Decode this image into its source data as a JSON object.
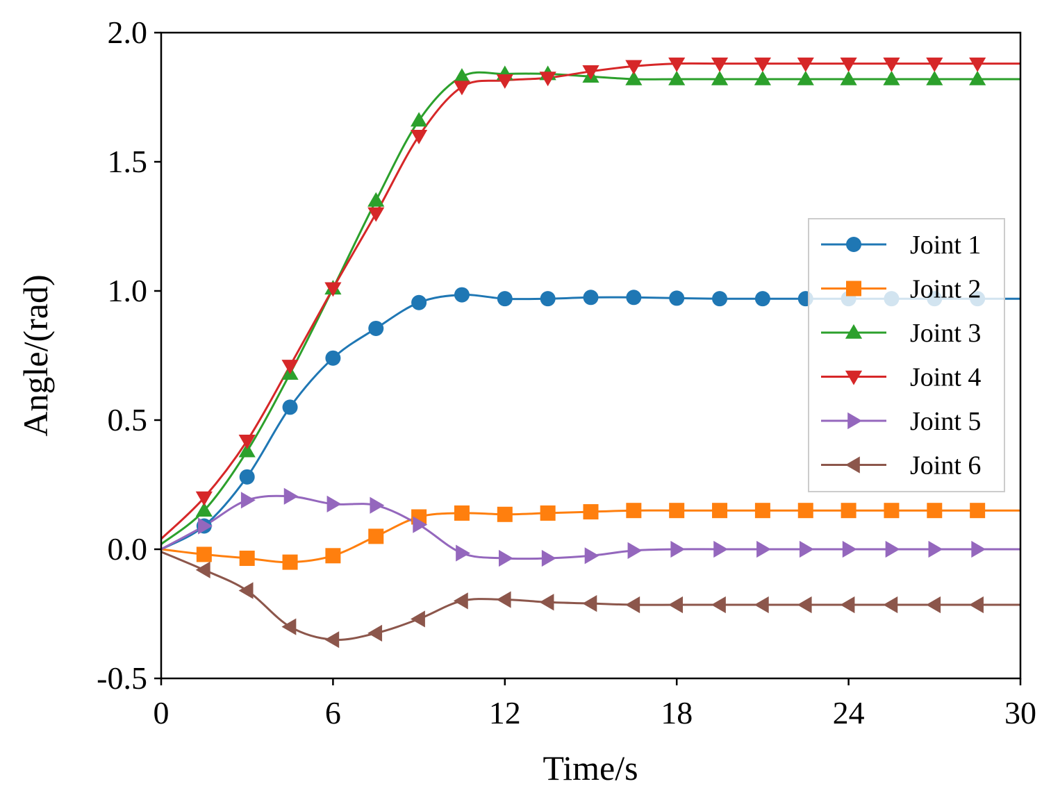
{
  "chart_data": {
    "type": "line",
    "title": "",
    "xlabel": "Time/s",
    "ylabel": "Angle/(rad)",
    "xlim": [
      0,
      30
    ],
    "ylim": [
      -0.5,
      2.0
    ],
    "xticks": [
      0,
      6,
      12,
      18,
      24,
      30
    ],
    "xtick_labels": [
      "0",
      "6",
      "12",
      "18",
      "24",
      "30"
    ],
    "yticks": [
      -0.5,
      0.0,
      0.5,
      1.0,
      1.5,
      2.0
    ],
    "ytick_labels": [
      "-0.5",
      "0.0",
      "0.5",
      "1.0",
      "1.5",
      "2.0"
    ],
    "grid": false,
    "legend_position": "center-right",
    "marker_x": [
      0,
      1.5,
      3,
      4.5,
      6,
      7.5,
      9,
      10.5,
      12,
      13.5,
      15,
      16.5,
      18,
      19.5,
      21,
      22.5,
      24,
      25.5,
      27,
      28.5
    ],
    "series": [
      {
        "name": "Joint 1",
        "color": "#1f77b4",
        "marker": "circle",
        "values": [
          0.0,
          0.09,
          0.28,
          0.55,
          0.74,
          0.855,
          0.955,
          0.985,
          0.97,
          0.97,
          0.975,
          0.975,
          0.972,
          0.97,
          0.97,
          0.97,
          0.97,
          0.97,
          0.97,
          0.97
        ]
      },
      {
        "name": "Joint 2",
        "color": "#ff7f0e",
        "marker": "square",
        "values": [
          0.0,
          -0.02,
          -0.035,
          -0.05,
          -0.025,
          0.05,
          0.125,
          0.14,
          0.135,
          0.14,
          0.145,
          0.15,
          0.15,
          0.15,
          0.15,
          0.15,
          0.15,
          0.15,
          0.15,
          0.15
        ]
      },
      {
        "name": "Joint 3",
        "color": "#2ca02c",
        "marker": "triangle-up",
        "values": [
          0.02,
          0.15,
          0.38,
          0.68,
          1.01,
          1.35,
          1.66,
          1.83,
          1.84,
          1.84,
          1.83,
          1.82,
          1.82,
          1.82,
          1.82,
          1.82,
          1.82,
          1.82,
          1.82,
          1.82
        ]
      },
      {
        "name": "Joint 4",
        "color": "#d62728",
        "marker": "triangle-down",
        "values": [
          0.04,
          0.2,
          0.42,
          0.71,
          1.01,
          1.3,
          1.6,
          1.79,
          1.815,
          1.825,
          1.85,
          1.87,
          1.88,
          1.88,
          1.88,
          1.88,
          1.88,
          1.88,
          1.88,
          1.88
        ]
      },
      {
        "name": "Joint 5",
        "color": "#9467bd",
        "marker": "triangle-right",
        "values": [
          0.0,
          0.09,
          0.19,
          0.205,
          0.175,
          0.17,
          0.095,
          -0.015,
          -0.035,
          -0.035,
          -0.025,
          -0.005,
          0.0,
          0.0,
          0.0,
          0.0,
          0.0,
          0.0,
          0.0,
          0.0
        ]
      },
      {
        "name": "Joint 6",
        "color": "#8c564b",
        "marker": "triangle-left",
        "values": [
          -0.01,
          -0.08,
          -0.16,
          -0.3,
          -0.35,
          -0.325,
          -0.27,
          -0.2,
          -0.195,
          -0.205,
          -0.21,
          -0.215,
          -0.215,
          -0.215,
          -0.215,
          -0.215,
          -0.215,
          -0.215,
          -0.215,
          -0.215
        ]
      }
    ]
  }
}
